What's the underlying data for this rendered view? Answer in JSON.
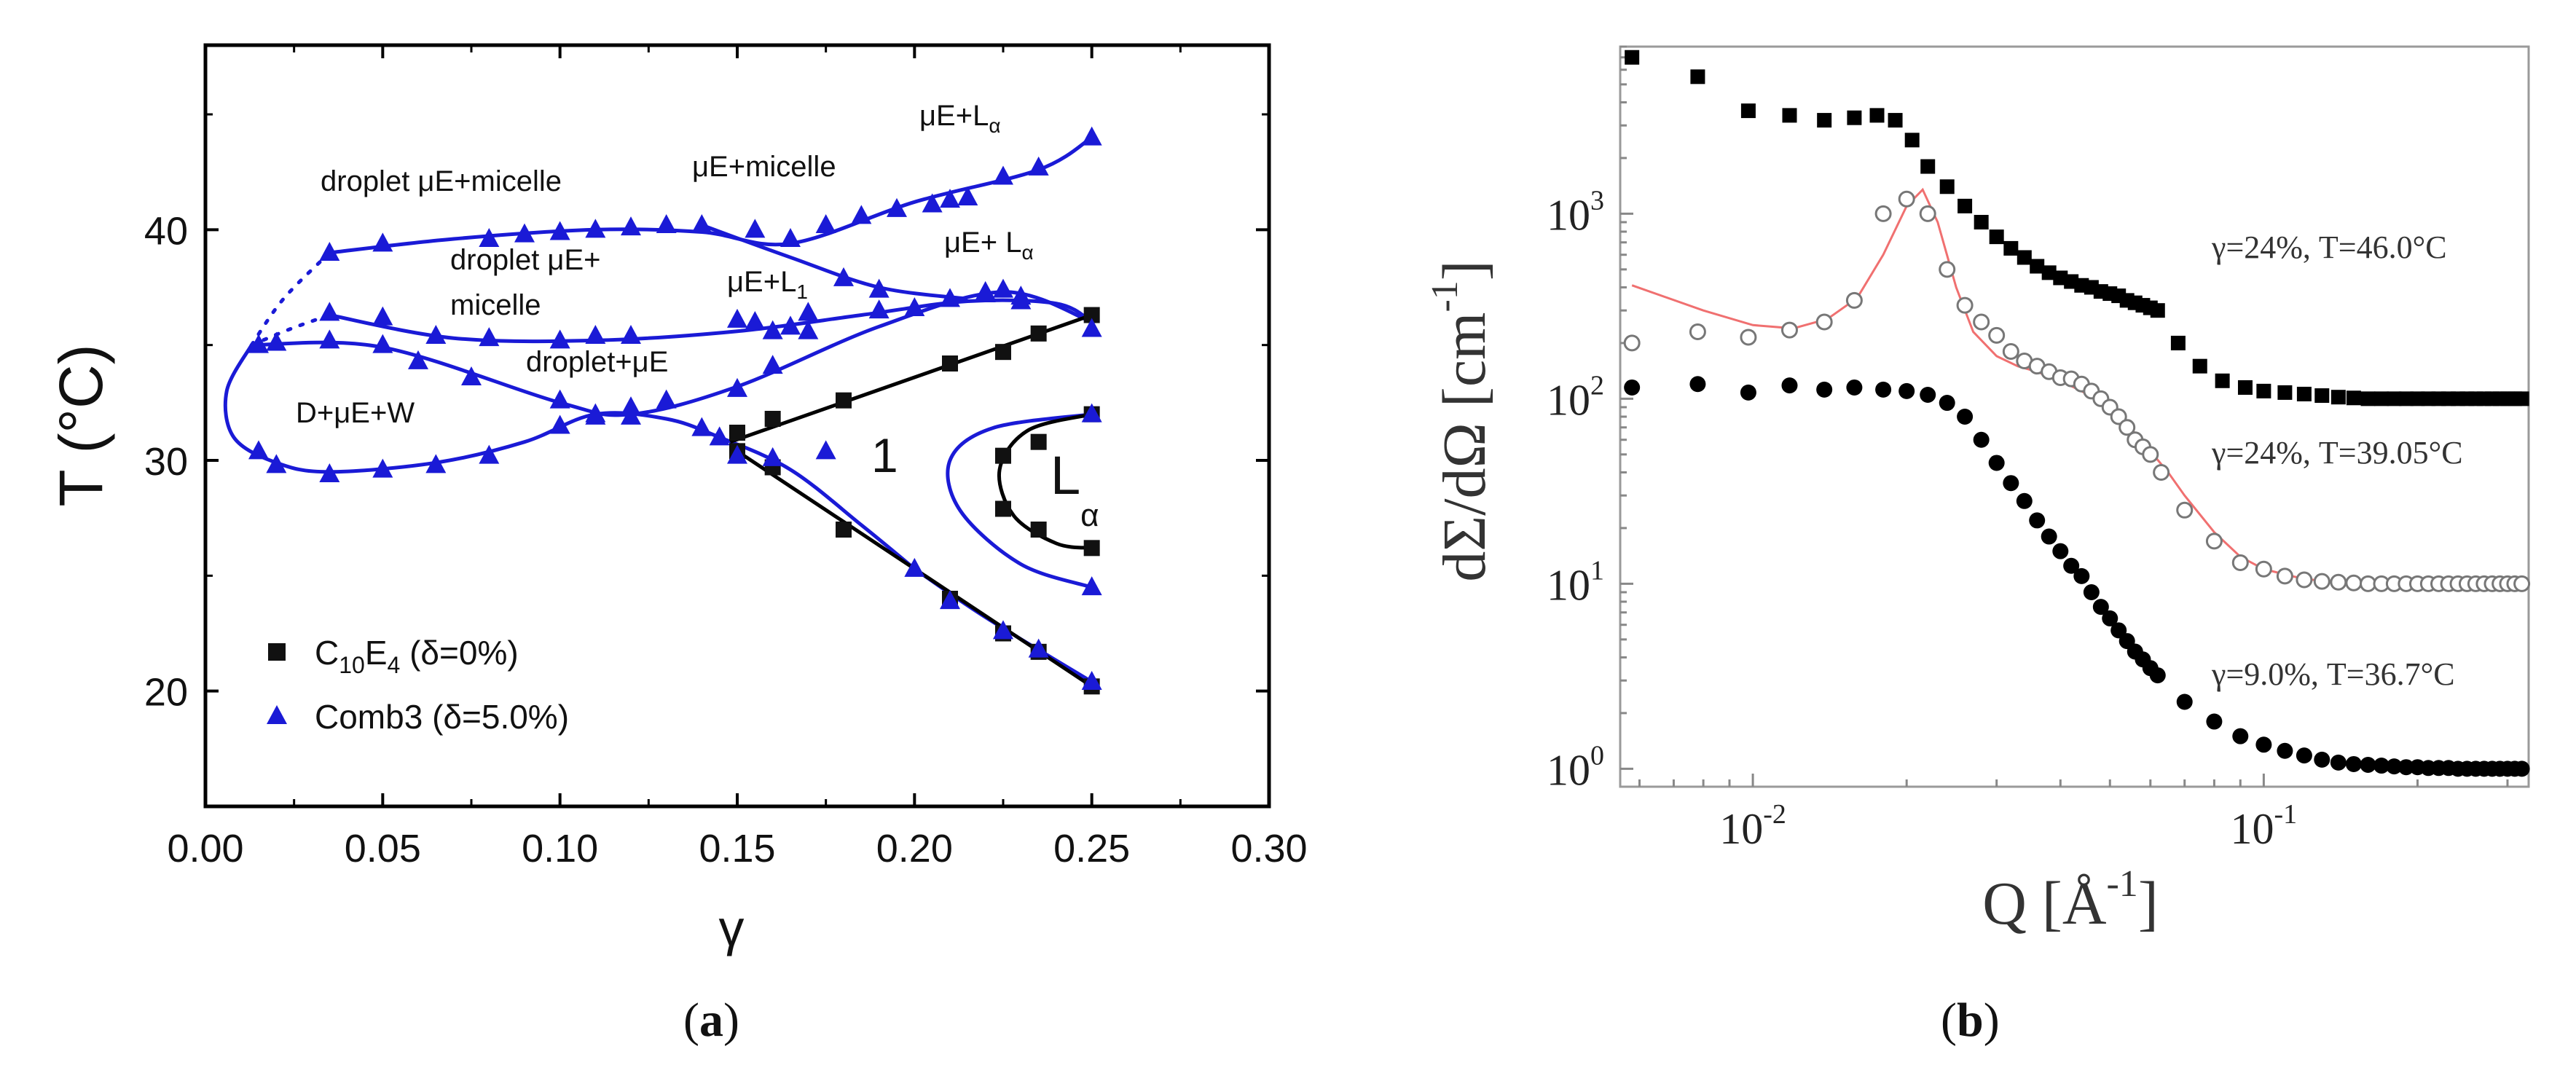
{
  "figure": {
    "panel_a_label": "(a)",
    "panel_b_label": "(b)",
    "panel_a_letter": "a",
    "panel_b_letter": "b"
  },
  "colors": {
    "blue": "#1a1ad6",
    "black": "#111111",
    "fit_red": "#f07070",
    "hollow_gray": "#777777"
  },
  "chart_data": [
    {
      "type": "scatter",
      "title": "",
      "xlabel": "γ",
      "ylabel": "T (°C)",
      "xlim": [
        0.0,
        0.3
      ],
      "ylim": [
        15,
        48
      ],
      "xticks": [
        "0.00",
        "0.05",
        "0.10",
        "0.15",
        "0.20",
        "0.25",
        "0.30"
      ],
      "yticks": [
        "20",
        "30",
        "40"
      ],
      "legend": [
        {
          "label_main": "C",
          "label_sub1": "10",
          "label_mid": "E",
          "label_sub2": "4",
          "label_tail": " (δ=0%)",
          "marker": "square",
          "color": "#111111"
        },
        {
          "label": "Comb3 (δ=5.0%)",
          "marker": "triangle",
          "color": "#1a1ad6"
        }
      ],
      "annotations": {
        "droplet_mu_micelle_top": "droplet μE+micelle",
        "mu_micelle": "μE+micelle",
        "mu_La_top_main": "μE+L",
        "mu_La_top_sub": "α",
        "droplet_mu_plus": "droplet μE+",
        "micelle": "micelle",
        "mu_L1_main": "μE+L",
        "mu_L1_sub": "1",
        "mu_La_mid_main": "μE+ L",
        "mu_La_mid_sub": "α",
        "droplet_plus_mu": "droplet+μE",
        "d_mu_w": "D+μE+W",
        "one_phase": "1",
        "lamellar_main": "L",
        "lamellar_sub": "α"
      },
      "series": [
        {
          "name": "C10E4 (δ=0%)",
          "marker": "square",
          "x": [
            0.15,
            0.16,
            0.18,
            0.21,
            0.225,
            0.235,
            0.25,
            0.15,
            0.16,
            0.18,
            0.21,
            0.225,
            0.235,
            0.25,
            0.225,
            0.235,
            0.25,
            0.225,
            0.235,
            0.25
          ],
          "y": [
            31.2,
            31.8,
            32.6,
            34.2,
            34.7,
            35.5,
            36.3,
            30.4,
            29.7,
            27.0,
            24.0,
            22.5,
            21.7,
            20.2,
            30.2,
            30.8,
            32.0,
            27.9,
            27.0,
            26.2
          ]
        },
        {
          "name": "Comb3 (δ=5.0%)",
          "marker": "triangle",
          "x": [
            0.035,
            0.05,
            0.08,
            0.09,
            0.1,
            0.11,
            0.12,
            0.13,
            0.14,
            0.155,
            0.165,
            0.175,
            0.185,
            0.195,
            0.205,
            0.21,
            0.215,
            0.225,
            0.235,
            0.25,
            0.035,
            0.05,
            0.065,
            0.08,
            0.1,
            0.11,
            0.12,
            0.15,
            0.155,
            0.16,
            0.165,
            0.17,
            0.18,
            0.19,
            0.2,
            0.21,
            0.22,
            0.23,
            0.015,
            0.02,
            0.035,
            0.05,
            0.06,
            0.075,
            0.1,
            0.11,
            0.12,
            0.13,
            0.15,
            0.16,
            0.17,
            0.19,
            0.22,
            0.225,
            0.23,
            0.25,
            0.015,
            0.02,
            0.035,
            0.05,
            0.065,
            0.08,
            0.1,
            0.11,
            0.12,
            0.14,
            0.145,
            0.15,
            0.16,
            0.175,
            0.2,
            0.21,
            0.225,
            0.235,
            0.25,
            0.25,
            0.25
          ],
          "y": [
            39.0,
            39.4,
            39.6,
            39.8,
            39.9,
            40.0,
            40.1,
            40.2,
            40.2,
            40.0,
            39.6,
            40.2,
            40.6,
            40.9,
            41.1,
            41.3,
            41.4,
            42.3,
            42.7,
            44.0,
            36.4,
            36.2,
            35.4,
            35.3,
            35.2,
            35.4,
            35.4,
            36.1,
            36.0,
            35.6,
            35.8,
            36.4,
            37.9,
            37.4,
            36.6,
            37.0,
            37.2,
            37.1,
            35.0,
            35.1,
            35.2,
            35.0,
            34.3,
            33.6,
            32.6,
            32.0,
            32.3,
            32.6,
            33.1,
            34.1,
            35.6,
            36.5,
            37.3,
            37.4,
            36.9,
            35.7,
            30.4,
            29.8,
            29.4,
            29.6,
            29.8,
            30.2,
            31.5,
            31.9,
            31.9,
            31.4,
            31.0,
            30.2,
            30.1,
            30.4,
            25.3,
            23.9,
            22.6,
            21.8,
            20.4,
            24.5,
            32.0
          ]
        }
      ]
    },
    {
      "type": "scatter",
      "title": "",
      "xlabel_main": "Q [Å",
      "xlabel_sup": "-1",
      "xlabel_end": "]",
      "ylabel_main": "dΣ/dΩ [cm",
      "ylabel_sup": "-1",
      "ylabel_end": "]",
      "xscale": "log",
      "yscale": "log",
      "xlim": [
        0.0055,
        0.33
      ],
      "ylim": [
        0.8,
        8000
      ],
      "xticks": [
        {
          "base": "10",
          "exp": "-2",
          "value": 0.01
        },
        {
          "base": "10",
          "exp": "-1",
          "value": 0.1
        }
      ],
      "yticks": [
        {
          "base": "10",
          "exp": "0",
          "value": 1
        },
        {
          "base": "10",
          "exp": "1",
          "value": 10
        },
        {
          "base": "10",
          "exp": "2",
          "value": 100
        },
        {
          "base": "10",
          "exp": "3",
          "value": 1000
        }
      ],
      "series": [
        {
          "name": "γ=24%, T=46.0°C",
          "label": "γ=24%, T=46.0°C",
          "marker": "filled-square",
          "x": [
            0.0058,
            0.0078,
            0.0098,
            0.0118,
            0.0138,
            0.0158,
            0.0175,
            0.019,
            0.0205,
            0.022,
            0.024,
            0.026,
            0.028,
            0.03,
            0.032,
            0.034,
            0.036,
            0.038,
            0.04,
            0.042,
            0.044,
            0.046,
            0.048,
            0.05,
            0.052,
            0.054,
            0.056,
            0.058,
            0.06,
            0.062,
            0.068,
            0.075,
            0.083,
            0.092,
            0.1,
            0.11,
            0.12,
            0.13,
            0.14,
            0.15,
            0.16,
            0.17,
            0.18,
            0.19,
            0.2,
            0.21,
            0.22,
            0.23,
            0.24,
            0.25,
            0.26,
            0.27,
            0.28,
            0.29,
            0.3,
            0.31,
            0.32
          ],
          "y": [
            7000,
            5500,
            3600,
            3400,
            3200,
            3300,
            3400,
            3200,
            2500,
            1800,
            1400,
            1100,
            900,
            750,
            650,
            580,
            520,
            480,
            450,
            430,
            410,
            400,
            380,
            370,
            360,
            340,
            330,
            320,
            310,
            300,
            200,
            150,
            125,
            115,
            110,
            108,
            106,
            104,
            102,
            101,
            100,
            100,
            100,
            100,
            100,
            100,
            100,
            100,
            100,
            100,
            100,
            100,
            100,
            100,
            100,
            100,
            100
          ]
        },
        {
          "name": "γ=24%, T=39.05°C",
          "label": "γ=24%, T=39.05°C",
          "marker": "open-circle",
          "x": [
            0.0058,
            0.0078,
            0.0098,
            0.0118,
            0.0138,
            0.0158,
            0.018,
            0.02,
            0.022,
            0.024,
            0.026,
            0.028,
            0.03,
            0.032,
            0.034,
            0.036,
            0.038,
            0.04,
            0.042,
            0.044,
            0.046,
            0.048,
            0.05,
            0.052,
            0.054,
            0.056,
            0.058,
            0.06,
            0.063,
            0.07,
            0.08,
            0.09,
            0.1,
            0.11,
            0.12,
            0.13,
            0.14,
            0.15,
            0.16,
            0.17,
            0.18,
            0.19,
            0.2,
            0.21,
            0.22,
            0.23,
            0.24,
            0.25,
            0.26,
            0.27,
            0.28,
            0.29,
            0.3,
            0.31,
            0.32
          ],
          "y": [
            200,
            230,
            215,
            235,
            260,
            340,
            1000,
            1200,
            1000,
            500,
            320,
            260,
            220,
            180,
            160,
            150,
            140,
            130,
            128,
            120,
            110,
            100,
            90,
            80,
            70,
            60,
            55,
            50,
            40,
            25,
            17,
            13,
            12,
            11,
            10.5,
            10.3,
            10.2,
            10.1,
            10,
            10,
            10,
            10,
            10,
            10,
            10,
            10,
            10,
            10,
            10,
            10,
            10,
            10,
            10,
            10,
            10
          ]
        },
        {
          "name": "fit (γ=24%, T=39.05°C)",
          "marker": "line",
          "x": [
            0.0058,
            0.008,
            0.01,
            0.012,
            0.014,
            0.016,
            0.018,
            0.02,
            0.0215,
            0.023,
            0.025,
            0.027,
            0.03,
            0.033,
            0.036,
            0.04,
            0.044,
            0.048,
            0.052,
            0.056,
            0.06,
            0.065,
            0.07,
            0.08,
            0.09,
            0.1,
            0.12,
            0.15,
            0.2,
            0.25,
            0.32
          ],
          "y": [
            410,
            300,
            250,
            240,
            270,
            350,
            600,
            1100,
            1350,
            900,
            400,
            230,
            170,
            150,
            140,
            125,
            110,
            95,
            80,
            65,
            52,
            40,
            30,
            19,
            14,
            12,
            10.6,
            10.1,
            10,
            10,
            10
          ]
        },
        {
          "name": "γ=9.0%, T=36.7°C",
          "label": "γ=9.0%, T=36.7°C",
          "marker": "filled-circle",
          "x": [
            0.0058,
            0.0078,
            0.0098,
            0.0118,
            0.0138,
            0.0158,
            0.018,
            0.02,
            0.022,
            0.024,
            0.026,
            0.028,
            0.03,
            0.032,
            0.034,
            0.036,
            0.038,
            0.04,
            0.042,
            0.044,
            0.046,
            0.048,
            0.05,
            0.052,
            0.054,
            0.056,
            0.058,
            0.06,
            0.062,
            0.07,
            0.08,
            0.09,
            0.1,
            0.11,
            0.12,
            0.13,
            0.14,
            0.15,
            0.16,
            0.17,
            0.18,
            0.19,
            0.2,
            0.21,
            0.22,
            0.23,
            0.24,
            0.25,
            0.26,
            0.27,
            0.28,
            0.29,
            0.3,
            0.31,
            0.32
          ],
          "y": [
            115,
            120,
            108,
            118,
            112,
            115,
            112,
            110,
            105,
            95,
            80,
            60,
            45,
            35,
            28,
            22,
            18,
            15,
            12.5,
            11,
            9,
            7.5,
            6.5,
            5.6,
            4.9,
            4.3,
            3.9,
            3.5,
            3.2,
            2.3,
            1.8,
            1.5,
            1.35,
            1.25,
            1.18,
            1.12,
            1.08,
            1.06,
            1.05,
            1.04,
            1.03,
            1.02,
            1.02,
            1.01,
            1.01,
            1.01,
            1.0,
            1.0,
            1.0,
            1.0,
            1.0,
            1.0,
            1.0,
            1.0,
            1.0
          ]
        }
      ]
    }
  ]
}
